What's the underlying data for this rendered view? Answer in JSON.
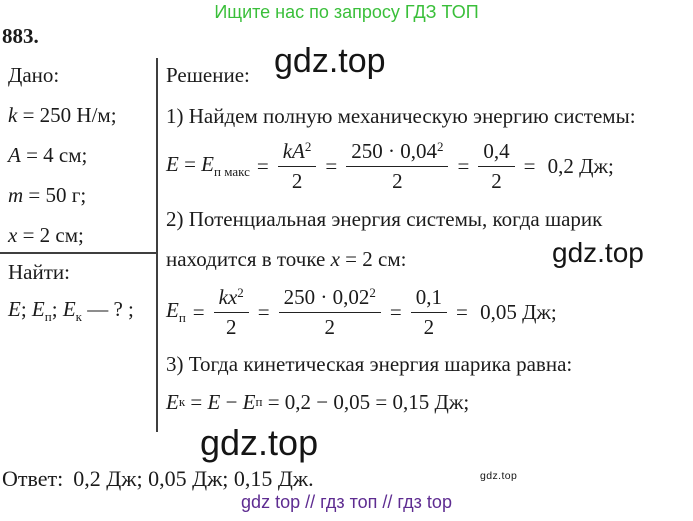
{
  "promo": {
    "text": "Ищите нас по запросу ГДЗ ТОП",
    "color": "#3abf3a"
  },
  "problem": {
    "number": "883."
  },
  "symbols": {
    "eq": "="
  },
  "given": {
    "title": "Дано:",
    "items": [
      [
        {
          "t": "k",
          "s": "i"
        },
        {
          "t": " = 250 Н/м;"
        }
      ],
      [
        {
          "t": "A",
          "s": "i"
        },
        {
          "t": " = 4 см;"
        }
      ],
      [
        {
          "t": "m",
          "s": "i"
        },
        {
          "t": " = 50 г;"
        }
      ],
      [
        {
          "t": "x",
          "s": "i"
        },
        {
          "t": " = 2 см;"
        }
      ]
    ],
    "find_title": "Найти:",
    "find": [
      {
        "t": "E",
        "s": "i"
      },
      {
        "t": "; "
      },
      {
        "t": "E",
        "s": "i"
      },
      {
        "t": "п",
        "s": "sub"
      },
      {
        "t": "; "
      },
      {
        "t": "E",
        "s": "i"
      },
      {
        "t": "к",
        "s": "sub"
      },
      {
        "t": " — ? ;"
      }
    ]
  },
  "solution": {
    "title": "Решение:",
    "step1": {
      "text": "1) Найдем полную механическую энергию системы:",
      "lead": [
        {
          "t": "E",
          "s": "i"
        },
        {
          "t": " = "
        },
        {
          "t": "E",
          "s": "i"
        },
        {
          "t": "п макс",
          "s": "sub"
        }
      ],
      "frac1": {
        "num": [
          {
            "t": "kA",
            "s": "i"
          },
          {
            "t": "2",
            "s": "sup"
          }
        ],
        "den": [
          {
            "t": "2"
          }
        ]
      },
      "frac2": {
        "num": [
          {
            "t": "250 · 0,04"
          },
          {
            "t": "2",
            "s": "sup"
          }
        ],
        "den": [
          {
            "t": "2"
          }
        ]
      },
      "frac3": {
        "num": [
          {
            "t": "0,4"
          }
        ],
        "den": [
          {
            "t": "2"
          }
        ]
      },
      "result": " 0,2 Дж;"
    },
    "step2": {
      "text_line1": "2) Потенциальная энергия системы, когда шарик",
      "text_line2": [
        {
          "t": "находится в точке "
        },
        {
          "t": "x",
          "s": "i"
        },
        {
          "t": " = 2 см:"
        }
      ],
      "lead": [
        {
          "t": "E",
          "s": "i"
        },
        {
          "t": "п",
          "s": "sub"
        }
      ],
      "frac1": {
        "num": [
          {
            "t": "kx",
            "s": "i"
          },
          {
            "t": "2",
            "s": "sup"
          }
        ],
        "den": [
          {
            "t": "2"
          }
        ]
      },
      "frac2": {
        "num": [
          {
            "t": "250 · 0,02"
          },
          {
            "t": "2",
            "s": "sup"
          }
        ],
        "den": [
          {
            "t": "2"
          }
        ]
      },
      "frac3": {
        "num": [
          {
            "t": "0,1"
          }
        ],
        "den": [
          {
            "t": "2"
          }
        ]
      },
      "result": " 0,05 Дж;"
    },
    "step3": {
      "text": "3) Тогда кинетическая энергия шарика равна:",
      "line": [
        {
          "t": "E",
          "s": "i"
        },
        {
          "t": "к",
          "s": "sub"
        },
        {
          "t": " = "
        },
        {
          "t": "E",
          "s": "i"
        },
        {
          "t": " − "
        },
        {
          "t": "E",
          "s": "i"
        },
        {
          "t": "п",
          "s": "sub"
        },
        {
          "t": " = 0,2 − 0,05 = 0,15 Дж;"
        }
      ]
    }
  },
  "watermarks": {
    "top": "gdz.top",
    "mid": "gdz.top",
    "bottom": "gdz.top",
    "small": "gdz.top"
  },
  "answer": {
    "label": "Ответ:",
    "values": "0,2 Дж;  0,05 Дж;  0,15 Дж."
  },
  "footer": {
    "text": "gdz top  //  гдз топ  //  гдз top",
    "color": "#5e2c91"
  }
}
